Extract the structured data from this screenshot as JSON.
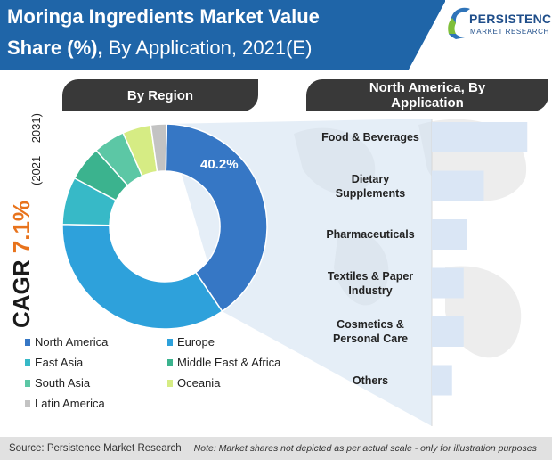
{
  "header": {
    "title_line1": "Moringa Ingredients Market Value",
    "title_line2_bold": "Share (%),",
    "title_line2_rest": " By Application, 2021(E)"
  },
  "logo": {
    "name": "PERSISTENCE",
    "tagline": "MARKET RESEARCH"
  },
  "cagr": {
    "prefix": "CAGR ",
    "value": "7.1%",
    "range": "(2021 – 2031)"
  },
  "colors": {
    "header_bg": "#1f65a8",
    "panel_head_bg": "#393939",
    "highlight": "#cfe0f1"
  },
  "chart_data": [
    {
      "type": "pie",
      "title": "By Region",
      "donut": true,
      "slices": [
        {
          "label": "North America",
          "value": 40.2,
          "color": "#3677c5",
          "data_label": "40.2%"
        },
        {
          "label": "Europe",
          "value": 34.8,
          "color": "#2ea1db",
          "data_label": ""
        },
        {
          "label": "East Asia",
          "value": 7.5,
          "color": "#37b9c7",
          "data_label": ""
        },
        {
          "label": "Middle East & Africa",
          "value": 5.5,
          "color": "#3bb38e",
          "data_label": ""
        },
        {
          "label": "South Asia",
          "value": 5.0,
          "color": "#5cc7a5",
          "data_label": ""
        },
        {
          "label": "Oceania",
          "value": 4.5,
          "color": "#d6ec84",
          "data_label": ""
        },
        {
          "label": "Latin America",
          "value": 2.5,
          "color": "#c3c3c3",
          "data_label": ""
        }
      ],
      "legend": [
        {
          "label": "North America",
          "color": "#3677c5"
        },
        {
          "label": "Europe",
          "color": "#2ea1db"
        },
        {
          "label": "East Asia",
          "color": "#37b9c7"
        },
        {
          "label": "Middle East & Africa",
          "color": "#3bb38e"
        },
        {
          "label": "South Asia",
          "color": "#5cc7a5"
        },
        {
          "label": "Oceania",
          "color": "#d6ec84"
        },
        {
          "label": "Latin America",
          "color": "#c3c3c3"
        }
      ]
    },
    {
      "type": "bar",
      "orientation": "horizontal",
      "title": "North America, By Application",
      "categories": [
        "Food & Beverages",
        "Dietary Supplements",
        "Pharmaceuticals",
        "Textiles & Paper Industry",
        "Cosmetics & Personal Care",
        "Others"
      ],
      "category_lines": [
        [
          "Food & Beverages"
        ],
        [
          "Dietary",
          "Supplements"
        ],
        [
          "Pharmaceuticals"
        ],
        [
          "Textiles & Paper",
          "Industry"
        ],
        [
          "Cosmetics &",
          "Personal Care"
        ],
        [
          "Others"
        ]
      ],
      "values": [
        33,
        18,
        12,
        11,
        11,
        7
      ],
      "xlim": [
        0,
        40
      ],
      "color": "#dae6f5",
      "axis_labels": false
    }
  ],
  "footer": {
    "source": "Source: Persistence Market Research",
    "note": "Note: Market shares not depicted as per actual scale - only for illustration purposes"
  }
}
